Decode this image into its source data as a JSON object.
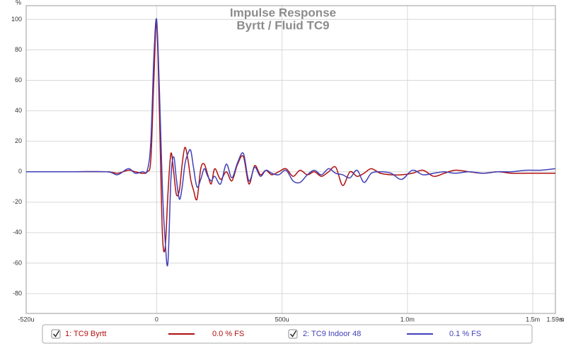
{
  "chart_data": {
    "type": "line",
    "title": "Impulse Response",
    "subtitle": "Byrtt / Fluid TC9",
    "x_label": "s",
    "y_label": "%",
    "x": [
      -0.00052,
      -0.00034,
      -0.000198,
      -0.000156,
      -0.000113,
      -8.5e-05,
      -5.7e-05,
      -3.7e-05,
      -2.3e-05,
      -1.1e-05,
      0,
      1.1e-05,
      2.3e-05,
      3.4e-05,
      4.5e-05,
      5.7e-05,
      6.8e-05,
      7.9e-05,
      9.1e-05,
      0.000102,
      0.000113,
      0.000125,
      0.000136,
      0.000147,
      0.000161,
      0.000176,
      0.00019,
      0.000204,
      0.000218,
      0.000232,
      0.000255,
      0.000278,
      0.0003,
      0.000323,
      0.000346,
      0.000368,
      0.000391,
      0.000414,
      0.000436,
      0.000459,
      0.000487,
      0.000516,
      0.000544,
      0.000572,
      0.000601,
      0.000629,
      0.000657,
      0.000686,
      0.000714,
      0.000742,
      0.000771,
      0.000799,
      0.000827,
      0.000856,
      0.000892,
      0.000935,
      0.000977,
      0.00102,
      0.001062,
      0.001105,
      0.001147,
      0.00119,
      0.001246,
      0.001303,
      0.00136,
      0.001416,
      0.001473,
      0.00153,
      0.00159
    ],
    "series": [
      {
        "name": "1: TC9 Byrtt",
        "fs_level": "0.0 % FS",
        "color": "#b01010",
        "values": [
          0,
          0,
          0,
          -1,
          1,
          0,
          -1,
          0,
          8,
          60,
          98,
          40,
          -40,
          -50,
          -15,
          12,
          0,
          -15,
          -12,
          5,
          16,
          8,
          -5,
          -12,
          -18,
          2,
          5,
          -2,
          -8,
          2,
          -5,
          0,
          -6,
          5,
          10,
          -8,
          4,
          -2,
          1,
          -2,
          0,
          2,
          -3,
          1,
          -2,
          0,
          -3,
          0,
          3,
          -9,
          0,
          -3,
          -1,
          2,
          -1,
          -2,
          -2,
          -1,
          1,
          -3,
          -1,
          1,
          0,
          -1,
          0,
          -1,
          -1,
          -1,
          -1
        ]
      },
      {
        "name": "2: TC9 Indoor 48",
        "fs_level": "0.1 % FS",
        "color": "#4040b8",
        "values": [
          0,
          0,
          0,
          -2,
          2,
          -1,
          0,
          1,
          20,
          75,
          100,
          55,
          -10,
          -45,
          -60,
          -5,
          10,
          -5,
          -18,
          -10,
          5,
          12,
          14,
          3,
          -10,
          -5,
          2,
          -3,
          -6,
          -3,
          -8,
          5,
          -4,
          6,
          12,
          -6,
          3,
          -3,
          1,
          -1,
          -2,
          1,
          -6,
          -7,
          -2,
          1,
          -2,
          2,
          -1,
          -2,
          -4,
          1,
          -7,
          -1,
          0,
          -1,
          -5,
          1,
          -2,
          -1,
          0,
          -1,
          0,
          -1,
          0,
          0,
          1,
          1,
          2
        ]
      }
    ],
    "xlim": [
      -0.00052,
      0.00159
    ],
    "ylim": [
      -93,
      109
    ],
    "xticks": [
      {
        "value": -0.00052,
        "label": "-520u"
      },
      0,
      {
        "value": 0.0005,
        "label": "500u"
      },
      {
        "value": 0.001,
        "label": "1.0m"
      },
      {
        "value": 0.0015,
        "label": "1.5m"
      },
      {
        "value": 0.00159,
        "label": "1.59m"
      }
    ],
    "yticks": [
      -80,
      -60,
      -40,
      -20,
      0,
      20,
      40,
      60,
      80,
      100
    ],
    "grid": true
  }
}
